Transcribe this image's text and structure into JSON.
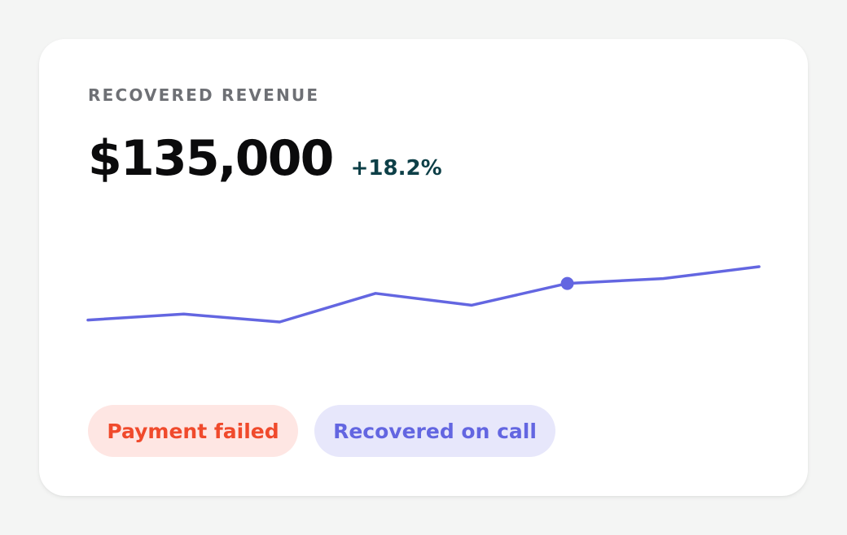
{
  "card": {
    "eyebrow": "RECOVERED REVENUE",
    "value": "$135,000",
    "change": "+18.2%"
  },
  "chart_data": {
    "type": "line",
    "title": "",
    "xlabel": "",
    "ylabel": "",
    "grid": false,
    "x": [
      1,
      2,
      3,
      4,
      5,
      6,
      7,
      8
    ],
    "series": [
      {
        "values": [
          2,
          8,
          0,
          29,
          17,
          39,
          44,
          56
        ],
        "highlight_index": 5
      }
    ],
    "ylim": [
      0,
      56
    ],
    "color": "#6366e1"
  },
  "chips": {
    "failed": "Payment failed",
    "recovered": "Recovered on call"
  },
  "colors": {
    "accent": "#6366e1",
    "positive": "#0d3f47",
    "danger": "#f04a2c",
    "danger_bg": "#fee6e3",
    "accent_bg": "#e7e7fb"
  }
}
